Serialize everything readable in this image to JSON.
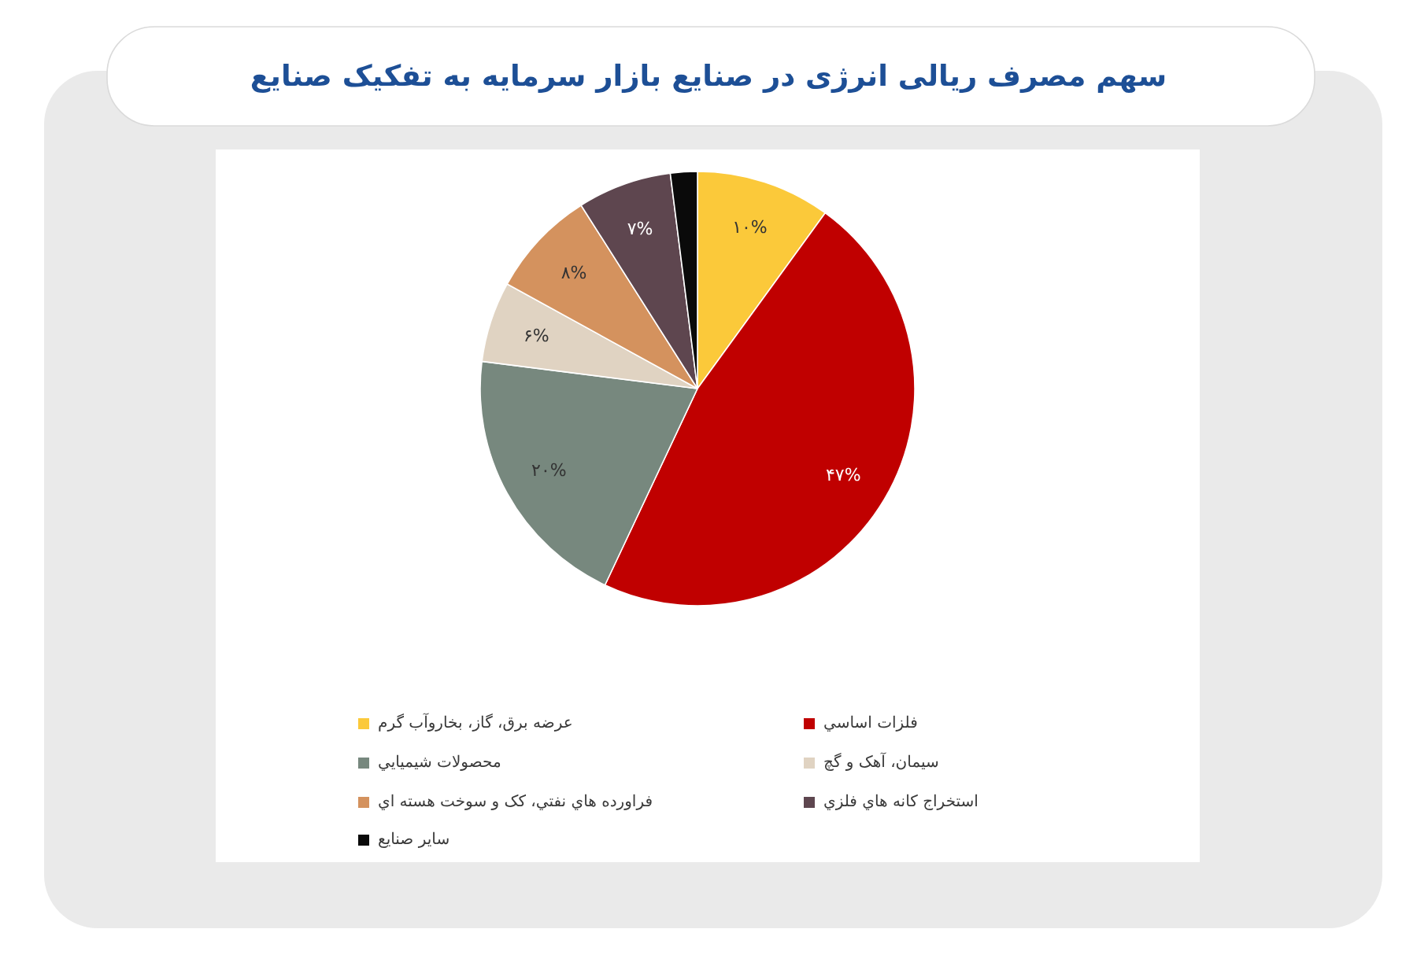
{
  "chart_data": {
    "type": "pie",
    "title": "سهم مصرف ریالی انرژی در صنایع بازار سرمایه به تفکیک صنایع",
    "categories": [
      "عرضه برق، گاز، بخاروآب گرم",
      "فلزات اساسي",
      "محصولات شيميايي",
      "سيمان، آهک و گچ",
      "فراورده هاي نفتي، کک و سوخت هسته اي",
      "استخراج کانه هاي فلزي",
      "ساير صنايع"
    ],
    "values": [
      10,
      47,
      20,
      6,
      8,
      7,
      2
    ],
    "colors": [
      "#fbc93a",
      "#c00000",
      "#77887e",
      "#e0d3c2",
      "#d4925e",
      "#5e464f",
      "#0a0a0a"
    ],
    "value_labels": [
      "۱۰%",
      "۴۷%",
      "۲۰%",
      "۶%",
      "۸%",
      "۷%",
      null
    ],
    "legend": "bottom"
  }
}
